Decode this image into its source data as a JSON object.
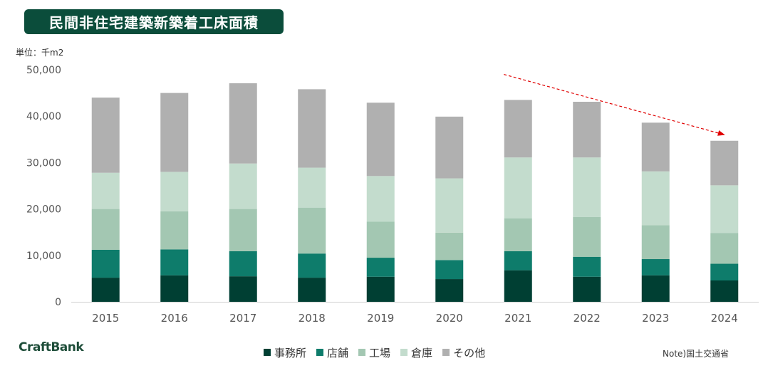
{
  "title": "民間非住宅建築新築着工床面積",
  "unit_label": "単位：千m2",
  "brand": "CraftBank",
  "note": "Note)国土交通省",
  "legend": [
    {
      "label": "事務所",
      "color": "#003f33"
    },
    {
      "label": "店舗",
      "color": "#0e7c6b"
    },
    {
      "label": "工場",
      "color": "#a3c7b2"
    },
    {
      "label": "倉庫",
      "color": "#c3dccd"
    },
    {
      "label": "その他",
      "color": "#b0b0b0"
    }
  ],
  "chart_data": {
    "type": "bar",
    "stacked": true,
    "categories": [
      "2015",
      "2016",
      "2017",
      "2018",
      "2019",
      "2020",
      "2021",
      "2022",
      "2023",
      "2024"
    ],
    "ylim": [
      0,
      50000
    ],
    "yticks": [
      0,
      10000,
      20000,
      30000,
      40000,
      50000
    ],
    "ytick_labels": [
      "0",
      "10,000",
      "20,000",
      "30,000",
      "40,000",
      "50,000"
    ],
    "grid": false,
    "legend_position": "bottom",
    "series": [
      {
        "name": "事務所",
        "color": "#003f33",
        "values": [
          5200,
          5700,
          5500,
          5200,
          5400,
          4900,
          6800,
          5400,
          5700,
          4600
        ]
      },
      {
        "name": "店舗",
        "color": "#0e7c6b",
        "values": [
          6000,
          5600,
          5400,
          5200,
          4100,
          4100,
          4100,
          4300,
          3500,
          3600
        ]
      },
      {
        "name": "工場",
        "color": "#a3c7b2",
        "values": [
          8800,
          8200,
          9100,
          9900,
          7800,
          5900,
          7100,
          8600,
          7300,
          6600
        ]
      },
      {
        "name": "倉庫",
        "color": "#c3dccd",
        "values": [
          7800,
          8500,
          9800,
          8600,
          9800,
          11700,
          13100,
          12800,
          11600,
          10300
        ]
      },
      {
        "name": "その他",
        "color": "#b0b0b0",
        "values": [
          16200,
          17000,
          17300,
          16900,
          15800,
          13300,
          12400,
          12000,
          10500,
          9600
        ]
      }
    ],
    "trend_arrow": {
      "from_category": "2021",
      "from_value": 49000,
      "to_category": "2024",
      "to_value": 36000,
      "color": "#e00000"
    }
  }
}
